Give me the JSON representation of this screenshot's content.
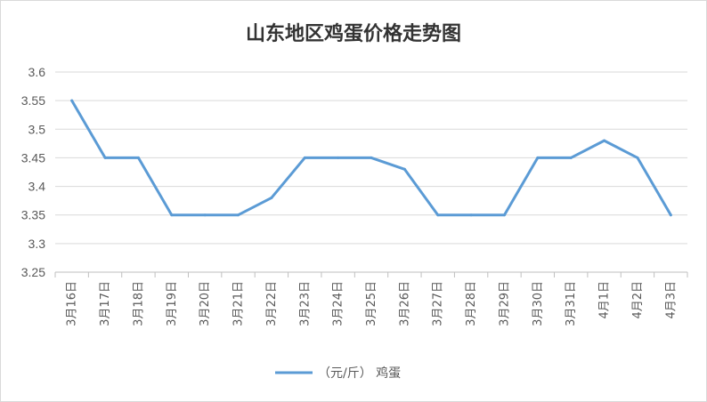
{
  "chart_data": {
    "type": "line",
    "title": "山东地区鸡蛋价格走势图",
    "categories": [
      "3月16日",
      "3月17日",
      "3月18日",
      "3月19日",
      "3月20日",
      "3月21日",
      "3月22日",
      "3月23日",
      "3月24日",
      "3月25日",
      "3月26日",
      "3月27日",
      "3月28日",
      "3月29日",
      "3月30日",
      "3月31日",
      "4月1日",
      "4月2日",
      "4月3日"
    ],
    "series": [
      {
        "name": "（元/斤） 鸡蛋",
        "values": [
          3.55,
          3.45,
          3.45,
          3.35,
          3.35,
          3.35,
          3.38,
          3.45,
          3.45,
          3.45,
          3.43,
          3.35,
          3.35,
          3.35,
          3.45,
          3.45,
          3.48,
          3.45,
          3.35
        ],
        "color": "#5b9bd5"
      }
    ],
    "ylim": [
      3.25,
      3.6
    ],
    "yticks": [
      "3.6",
      "3.55",
      "3.5",
      "3.45",
      "3.4",
      "3.35",
      "3.3",
      "3.25"
    ],
    "grid": true,
    "legend": "bottom"
  }
}
